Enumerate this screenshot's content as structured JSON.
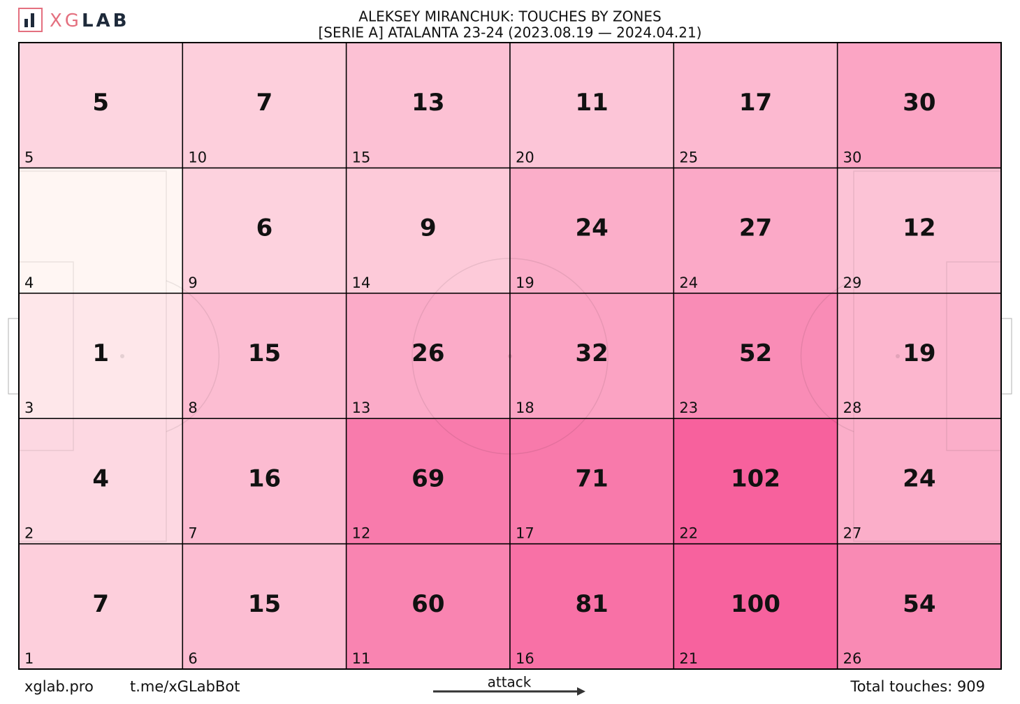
{
  "logo": {
    "left": "XG",
    "right": "LAB"
  },
  "chart_data": {
    "type": "heatmap",
    "title": "ALEKSEY MIRANCHUK: TOUCHES BY ZONES",
    "subtitle": "[SERIE A] ATALANTA 23-24 (2023.08.19 — 2024.04.21)",
    "columns": 6,
    "rows": 5,
    "color_low": "#fff6f3",
    "color_high": "#f7619d",
    "zones": [
      {
        "id": 1,
        "value": 7
      },
      {
        "id": 2,
        "value": 4
      },
      {
        "id": 3,
        "value": 1
      },
      {
        "id": 4,
        "value": null
      },
      {
        "id": 5,
        "value": 5
      },
      {
        "id": 6,
        "value": 15
      },
      {
        "id": 7,
        "value": 16
      },
      {
        "id": 8,
        "value": 15
      },
      {
        "id": 9,
        "value": 6
      },
      {
        "id": 10,
        "value": 7
      },
      {
        "id": 11,
        "value": 60
      },
      {
        "id": 12,
        "value": 69
      },
      {
        "id": 13,
        "value": 26
      },
      {
        "id": 14,
        "value": 9
      },
      {
        "id": 15,
        "value": 13
      },
      {
        "id": 16,
        "value": 81
      },
      {
        "id": 17,
        "value": 71
      },
      {
        "id": 18,
        "value": 32
      },
      {
        "id": 19,
        "value": 24
      },
      {
        "id": 20,
        "value": 11
      },
      {
        "id": 21,
        "value": 100
      },
      {
        "id": 22,
        "value": 102
      },
      {
        "id": 23,
        "value": 52
      },
      {
        "id": 24,
        "value": 27
      },
      {
        "id": 25,
        "value": 17
      },
      {
        "id": 26,
        "value": 54
      },
      {
        "id": 27,
        "value": 24
      },
      {
        "id": 28,
        "value": 19
      },
      {
        "id": 29,
        "value": 12
      },
      {
        "id": 30,
        "value": 30
      }
    ],
    "direction_label": "attack"
  },
  "footer": {
    "site": "xglab.pro",
    "bot": "t.me/xGLabBot",
    "total_label": "Total touches:",
    "total": 909
  }
}
